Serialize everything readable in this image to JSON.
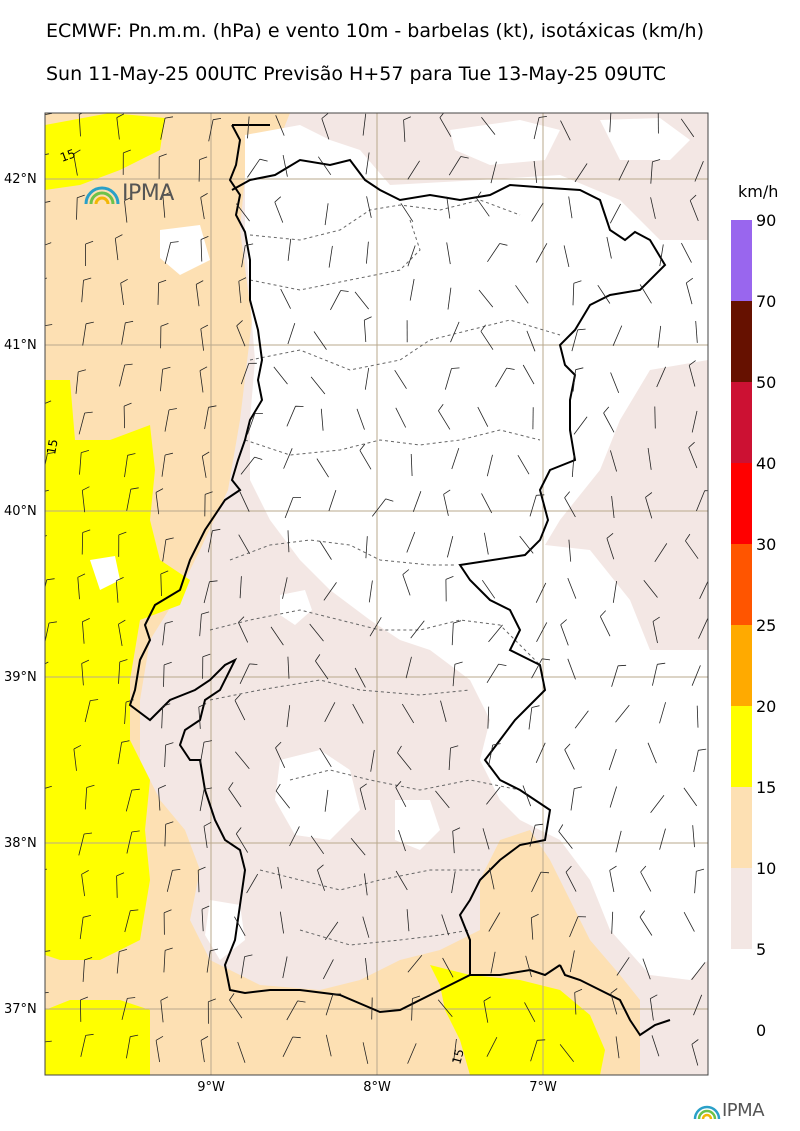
{
  "header": {
    "title_line1": "ECMWF: Pn.m.m. (hPa) e vento 10m - barbelas (kt), isotáxicas (km/h)",
    "title_line2": "Sun 11-May-25 00UTC Previsão H+57 para Tue 13-May-25 09UTC"
  },
  "map": {
    "latitude_labels": [
      "42°N",
      "41°N",
      "40°N",
      "39°N",
      "38°N",
      "37°N"
    ],
    "longitude_labels": [
      "9°W",
      "8°W",
      "7°W"
    ],
    "contour_labels": [
      "15",
      "15",
      "15"
    ],
    "logo_text": "IPMA",
    "colors": {
      "band_5_10": "#f3e7e4",
      "band_10_15": "#fde0b3",
      "band_15_20": "#ffff00",
      "land": "#ffffff",
      "graticule": "#b9a98d"
    }
  },
  "colorbar": {
    "unit": "km/h",
    "ticks": [
      "90",
      "70",
      "50",
      "40",
      "30",
      "25",
      "20",
      "15",
      "10",
      "5",
      "0"
    ],
    "colors": [
      "#9966ee",
      "#661100",
      "#cc1133",
      "#ff0000",
      "#ff5500",
      "#ffaa00",
      "#ffff00",
      "#fde0b3",
      "#f3e7e4",
      "#ffffff"
    ]
  },
  "footer": {
    "logo_text": "IPMA"
  }
}
